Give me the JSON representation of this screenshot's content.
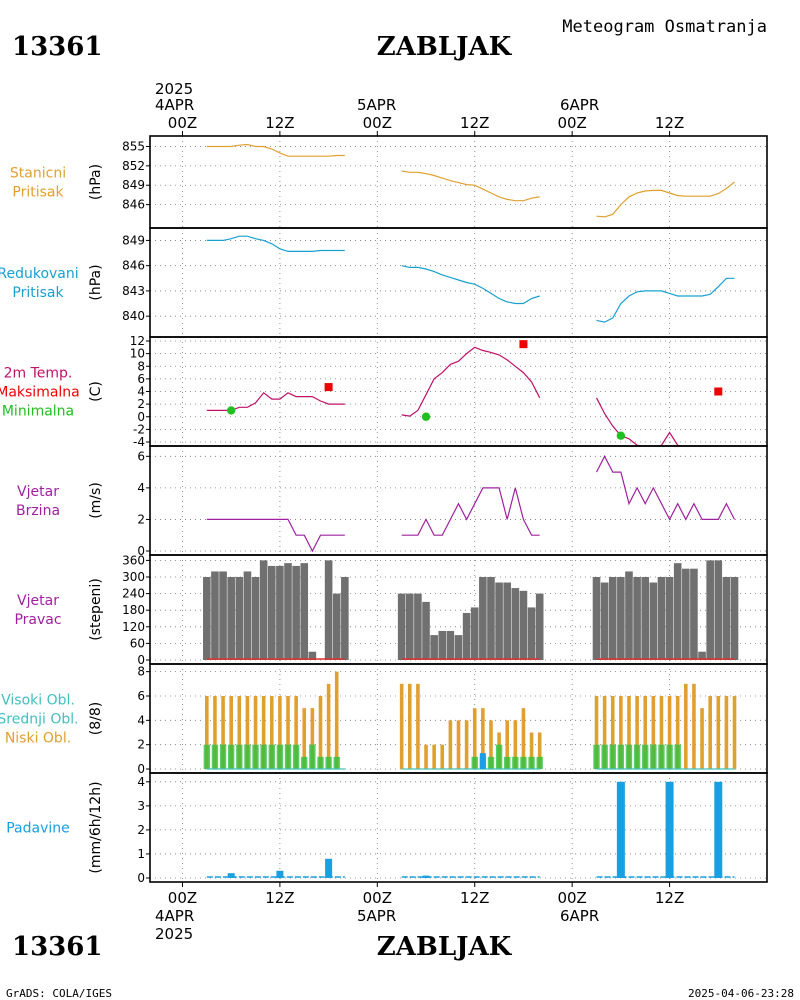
{
  "header": {
    "station_id": "13361",
    "station_name": "ZABLJAK",
    "subtitle": "Meteogram Osmatranja"
  },
  "footer": {
    "station_id": "13361",
    "station_name": "ZABLJAK",
    "left": "GrADS: COLA/IGES",
    "right": "2025-04-06-23:28"
  },
  "time_axis": {
    "year": "2025",
    "days": [
      "4APR",
      "5APR",
      "6APR"
    ],
    "tick_labels": [
      "00Z",
      "12Z",
      "00Z",
      "12Z",
      "00Z",
      "12Z"
    ],
    "tick_hours": [
      0,
      12,
      24,
      36,
      48,
      60
    ]
  },
  "colors": {
    "station_pressure": "#e0a030",
    "reduced_pressure": "#18a0d0",
    "temperature": "#c0106a",
    "tmax": "#ee0000",
    "tmin": "#20c020",
    "wind": "#a020a0",
    "bars": "#707070",
    "high_cloud": "#40c0c0",
    "mid_cloud": "#30c040",
    "low_cloud": "#e0a030",
    "precip": "#18a0e0"
  },
  "chart_data": [
    {
      "id": "station_pressure",
      "type": "line",
      "labels": [
        "Stanicni",
        "Pritisak"
      ],
      "ylabel": "(hPa)",
      "ylim": [
        843,
        856
      ],
      "yticks": [
        846,
        849,
        852,
        855
      ],
      "series": [
        {
          "x": [
            3,
            4,
            5,
            6,
            7,
            8,
            9,
            10,
            11,
            12,
            13,
            14,
            15,
            16,
            17,
            18,
            19,
            20
          ],
          "y": [
            855,
            855,
            855,
            855,
            855.2,
            855.3,
            855,
            855,
            854.6,
            854,
            853.5,
            853.5,
            853.5,
            853.5,
            853.5,
            853.5,
            853.6,
            853.6
          ]
        },
        {
          "x": [
            27,
            28,
            29,
            30,
            31,
            32,
            33,
            34,
            35,
            36,
            37,
            38,
            39,
            40,
            41,
            42,
            43,
            44
          ],
          "y": [
            851.2,
            851,
            851,
            850.8,
            850.5,
            850.1,
            849.7,
            849.4,
            849.1,
            849,
            848.4,
            847.8,
            847.2,
            846.8,
            846.6,
            846.6,
            847,
            847.2
          ]
        },
        {
          "x": [
            51,
            52,
            53,
            54,
            55,
            56,
            57,
            58,
            59,
            60,
            61,
            62,
            63,
            64,
            65,
            66,
            67,
            68
          ],
          "y": [
            844.2,
            844.1,
            844.5,
            846,
            847.2,
            847.8,
            848.1,
            848.2,
            848.2,
            847.8,
            847.4,
            847.3,
            847.3,
            847.3,
            847.3,
            847.7,
            848.5,
            849.5
          ]
        }
      ]
    },
    {
      "id": "reduced_pressure",
      "type": "line",
      "labels": [
        "Redukovani",
        "Pritisak"
      ],
      "ylabel": "(hPa)",
      "ylim": [
        838,
        850
      ],
      "yticks": [
        840,
        843,
        846,
        849
      ],
      "series": [
        {
          "x": [
            3,
            4,
            5,
            6,
            7,
            8,
            9,
            10,
            11,
            12,
            13,
            14,
            15,
            16,
            17,
            18,
            19,
            20
          ],
          "y": [
            849,
            849,
            849,
            849.2,
            849.5,
            849.5,
            849.2,
            849,
            848.6,
            848,
            847.7,
            847.7,
            847.7,
            847.7,
            847.8,
            847.8,
            847.8,
            847.8
          ]
        },
        {
          "x": [
            27,
            28,
            29,
            30,
            31,
            32,
            33,
            34,
            35,
            36,
            37,
            38,
            39,
            40,
            41,
            42,
            43,
            44
          ],
          "y": [
            846,
            845.8,
            845.8,
            845.6,
            845.3,
            844.9,
            844.6,
            844.3,
            844,
            843.8,
            843.3,
            842.7,
            842.1,
            841.7,
            841.5,
            841.5,
            842.1,
            842.4
          ]
        },
        {
          "x": [
            51,
            52,
            53,
            54,
            55,
            56,
            57,
            58,
            59,
            60,
            61,
            62,
            63,
            64,
            65,
            66,
            67,
            68
          ],
          "y": [
            839.5,
            839.3,
            839.8,
            841.5,
            842.4,
            842.9,
            843,
            843,
            843,
            842.7,
            842.4,
            842.4,
            842.4,
            842.4,
            842.6,
            843.5,
            844.5,
            844.5
          ]
        }
      ]
    },
    {
      "id": "temperature",
      "type": "line",
      "labels": [
        "2m Temp.",
        "Maksimalna",
        "Minimalna"
      ],
      "ylabel": "(C)",
      "ylim": [
        -4,
        12
      ],
      "yticks": [
        -4,
        -2,
        0,
        2,
        4,
        6,
        8,
        10,
        12
      ],
      "series": [
        {
          "x": [
            3,
            4,
            5,
            6,
            7,
            8,
            9,
            10,
            11,
            12,
            13,
            14,
            15,
            16,
            17,
            18,
            19,
            20
          ],
          "y": [
            1,
            1,
            1,
            1,
            1.5,
            1.5,
            2.2,
            3.8,
            2.8,
            2.8,
            3.8,
            3.2,
            3.2,
            3.2,
            2.5,
            2,
            2,
            2
          ]
        },
        {
          "x": [
            27,
            28,
            29,
            30,
            31,
            32,
            33,
            34,
            35,
            36,
            37,
            38,
            39,
            40,
            41,
            42,
            43,
            44
          ],
          "y": [
            0.3,
            0.1,
            1,
            3.5,
            6,
            7,
            8.3,
            8.8,
            10,
            11,
            10.5,
            10.2,
            9.8,
            9,
            8,
            7,
            5.5,
            3
          ]
        },
        {
          "x": [
            51,
            52,
            53,
            54,
            55,
            56,
            57,
            58,
            59,
            60,
            61,
            62,
            63,
            64,
            65,
            66,
            67,
            68
          ],
          "y": [
            3,
            0.5,
            -1.5,
            -3,
            -3.5,
            -4.5,
            -4.8,
            -5,
            -4.5,
            -2.5,
            -4.5,
            -5,
            -5,
            -5,
            -5,
            -5,
            -5,
            -5
          ]
        }
      ],
      "tmax_points": {
        "x": [
          18,
          42,
          66
        ],
        "y": [
          4.7,
          11.5,
          4
        ]
      },
      "tmin_points": {
        "x": [
          6,
          30,
          54
        ],
        "y": [
          1,
          0,
          -3
        ]
      }
    },
    {
      "id": "wind_speed",
      "type": "line",
      "labels": [
        "Vjetar",
        "Brzina"
      ],
      "ylabel": "(m/s)",
      "ylim": [
        0,
        6.4
      ],
      "yticks": [
        0,
        2,
        4,
        6
      ],
      "series": [
        {
          "x": [
            3,
            4,
            5,
            6,
            7,
            8,
            9,
            10,
            11,
            12,
            13,
            14,
            15,
            16,
            17,
            18,
            19,
            20
          ],
          "y": [
            2,
            2,
            2,
            2,
            2,
            2,
            2,
            2,
            2,
            2,
            2,
            1,
            1,
            0,
            1,
            1,
            1,
            1
          ]
        },
        {
          "x": [
            27,
            28,
            29,
            30,
            31,
            32,
            33,
            34,
            35,
            36,
            37,
            38,
            39,
            40,
            41,
            42,
            43,
            44
          ],
          "y": [
            1,
            1,
            1,
            2,
            1,
            1,
            2,
            3,
            2,
            3,
            4,
            4,
            4,
            2,
            4,
            2,
            1,
            1
          ]
        },
        {
          "x": [
            51,
            52,
            53,
            54,
            55,
            56,
            57,
            58,
            59,
            60,
            61,
            62,
            63,
            64,
            65,
            66,
            67,
            68
          ],
          "y": [
            5,
            6,
            5,
            5,
            3,
            4,
            3,
            4,
            3,
            2,
            3,
            2,
            3,
            2,
            2,
            2,
            3,
            2
          ]
        }
      ]
    },
    {
      "id": "wind_direction",
      "type": "bar",
      "labels": [
        "Vjetar",
        "Pravac"
      ],
      "ylabel": "(stepeni)",
      "ylim": [
        0,
        365
      ],
      "yticks": [
        0,
        60,
        120,
        180,
        240,
        300,
        360
      ],
      "x": [
        3,
        4,
        5,
        6,
        7,
        8,
        9,
        10,
        11,
        12,
        13,
        14,
        15,
        16,
        17,
        18,
        19,
        20,
        27,
        28,
        29,
        30,
        31,
        32,
        33,
        34,
        35,
        36,
        37,
        38,
        39,
        40,
        41,
        42,
        43,
        44,
        51,
        52,
        53,
        54,
        55,
        56,
        57,
        58,
        59,
        60,
        61,
        62,
        63,
        64,
        65,
        66,
        67,
        68
      ],
      "values": [
        300,
        320,
        320,
        300,
        300,
        320,
        300,
        360,
        340,
        340,
        350,
        340,
        350,
        30,
        0,
        360,
        240,
        300,
        240,
        240,
        240,
        210,
        90,
        105,
        105,
        90,
        170,
        190,
        300,
        300,
        280,
        280,
        260,
        250,
        190,
        240,
        300,
        280,
        300,
        300,
        320,
        300,
        300,
        280,
        300,
        300,
        350,
        330,
        330,
        30,
        360,
        360,
        300,
        300
      ]
    },
    {
      "id": "clouds",
      "type": "bar",
      "labels": [
        "Visoki Obl.",
        "Srednji Obl.",
        "Niski Obl."
      ],
      "ylabel": "(8/8)",
      "ylim": [
        0,
        8.3
      ],
      "yticks": [
        0,
        2,
        4,
        6,
        8
      ],
      "x": [
        3,
        4,
        5,
        6,
        7,
        8,
        9,
        10,
        11,
        12,
        13,
        14,
        15,
        16,
        17,
        18,
        19,
        20,
        27,
        28,
        29,
        30,
        31,
        32,
        33,
        34,
        35,
        36,
        37,
        38,
        39,
        40,
        41,
        42,
        43,
        44,
        51,
        52,
        53,
        54,
        55,
        56,
        57,
        58,
        59,
        60,
        61,
        62,
        63,
        64,
        65,
        66,
        67,
        68
      ],
      "series": [
        {
          "name": "Niski Obl.",
          "values": [
            6,
            6,
            6,
            6,
            6,
            6,
            6,
            6,
            6,
            6,
            6,
            6,
            5,
            5,
            6,
            7,
            8,
            0,
            7,
            7,
            7,
            2,
            2,
            2,
            4,
            4,
            4,
            5,
            5,
            4,
            3,
            4,
            4,
            5,
            3,
            3,
            6,
            6,
            6,
            6,
            6,
            6,
            6,
            6,
            6,
            6,
            6,
            7,
            7,
            5,
            6,
            6,
            6,
            6
          ]
        },
        {
          "name": "Srednji Obl.",
          "values": [
            2,
            2,
            2,
            2,
            2,
            2,
            2,
            2,
            2,
            2,
            2,
            2,
            1,
            2,
            1,
            1,
            1,
            0,
            0,
            0,
            0,
            0,
            0,
            0,
            0,
            0,
            0,
            1,
            1,
            1,
            2,
            1,
            1,
            1,
            1,
            1,
            2,
            2,
            2,
            2,
            2,
            2,
            2,
            2,
            2,
            2,
            2,
            0,
            0,
            0,
            0,
            0,
            0,
            0
          ]
        },
        {
          "name": "Visoki Obl.",
          "values": [
            0,
            0,
            0,
            0,
            0,
            0,
            0,
            0,
            0,
            0,
            0,
            0,
            0,
            0,
            0,
            0,
            0,
            0,
            0,
            0,
            0,
            0,
            0,
            0,
            0,
            0,
            0,
            0,
            0,
            0,
            0,
            0,
            0,
            0,
            0,
            0,
            0,
            0,
            0,
            0,
            0,
            0,
            0,
            0,
            0,
            0,
            0,
            0,
            0,
            0,
            0,
            0,
            0,
            0
          ]
        }
      ]
    },
    {
      "id": "precipitation",
      "type": "bar",
      "labels": [
        "Padavine"
      ],
      "ylabel": "(mm/6h/12h)",
      "ylim": [
        0,
        4.2
      ],
      "yticks": [
        0,
        1,
        2,
        3,
        4
      ],
      "x": [
        6,
        12,
        18,
        30,
        54,
        60,
        66
      ],
      "values": [
        0.2,
        0.3,
        0.8,
        0.1,
        4,
        4,
        4
      ]
    }
  ]
}
